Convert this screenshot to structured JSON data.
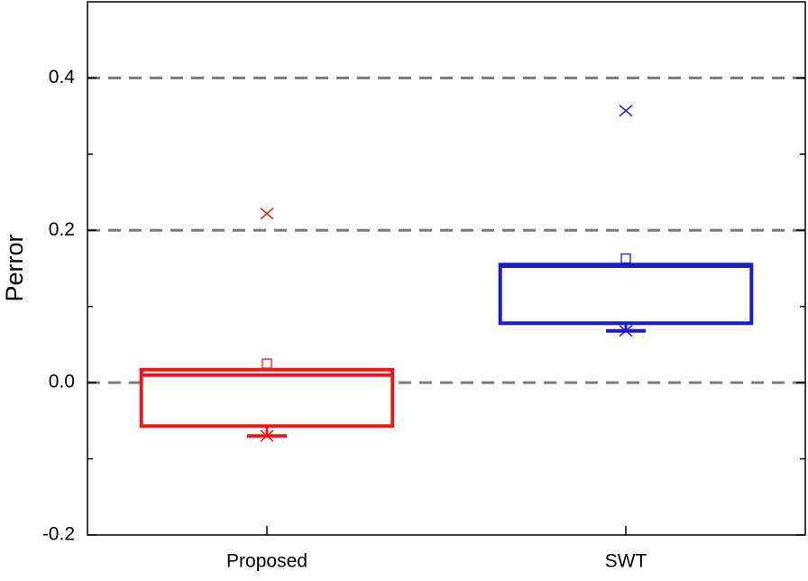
{
  "chart_data": {
    "type": "box",
    "y_label": "Perror",
    "categories": [
      "Proposed",
      "SWT"
    ],
    "colors": [
      "#e8191c",
      "#1a1ad6"
    ],
    "boxes": [
      {
        "q1": -0.057,
        "median": 0.01,
        "q3": 0.017,
        "whisker_low": -0.07,
        "mean": 0.025,
        "min": -0.07,
        "max": 0.222
      },
      {
        "q1": 0.078,
        "median": 0.153,
        "q3": 0.155,
        "whisker_low": 0.068,
        "mean": 0.163,
        "min": 0.068,
        "max": 0.357
      }
    ],
    "ylim": [
      -0.2,
      0.5
    ],
    "yticks": [
      -0.2,
      {
        "value": 0,
        "label": "0.0"
      },
      0.2,
      0.4
    ],
    "minor_yticks": [
      -0.1,
      0.1,
      0.3
    ],
    "grid": [
      {
        "value": 0,
        "label": "0.0"
      },
      0.2,
      0.4
    ]
  }
}
